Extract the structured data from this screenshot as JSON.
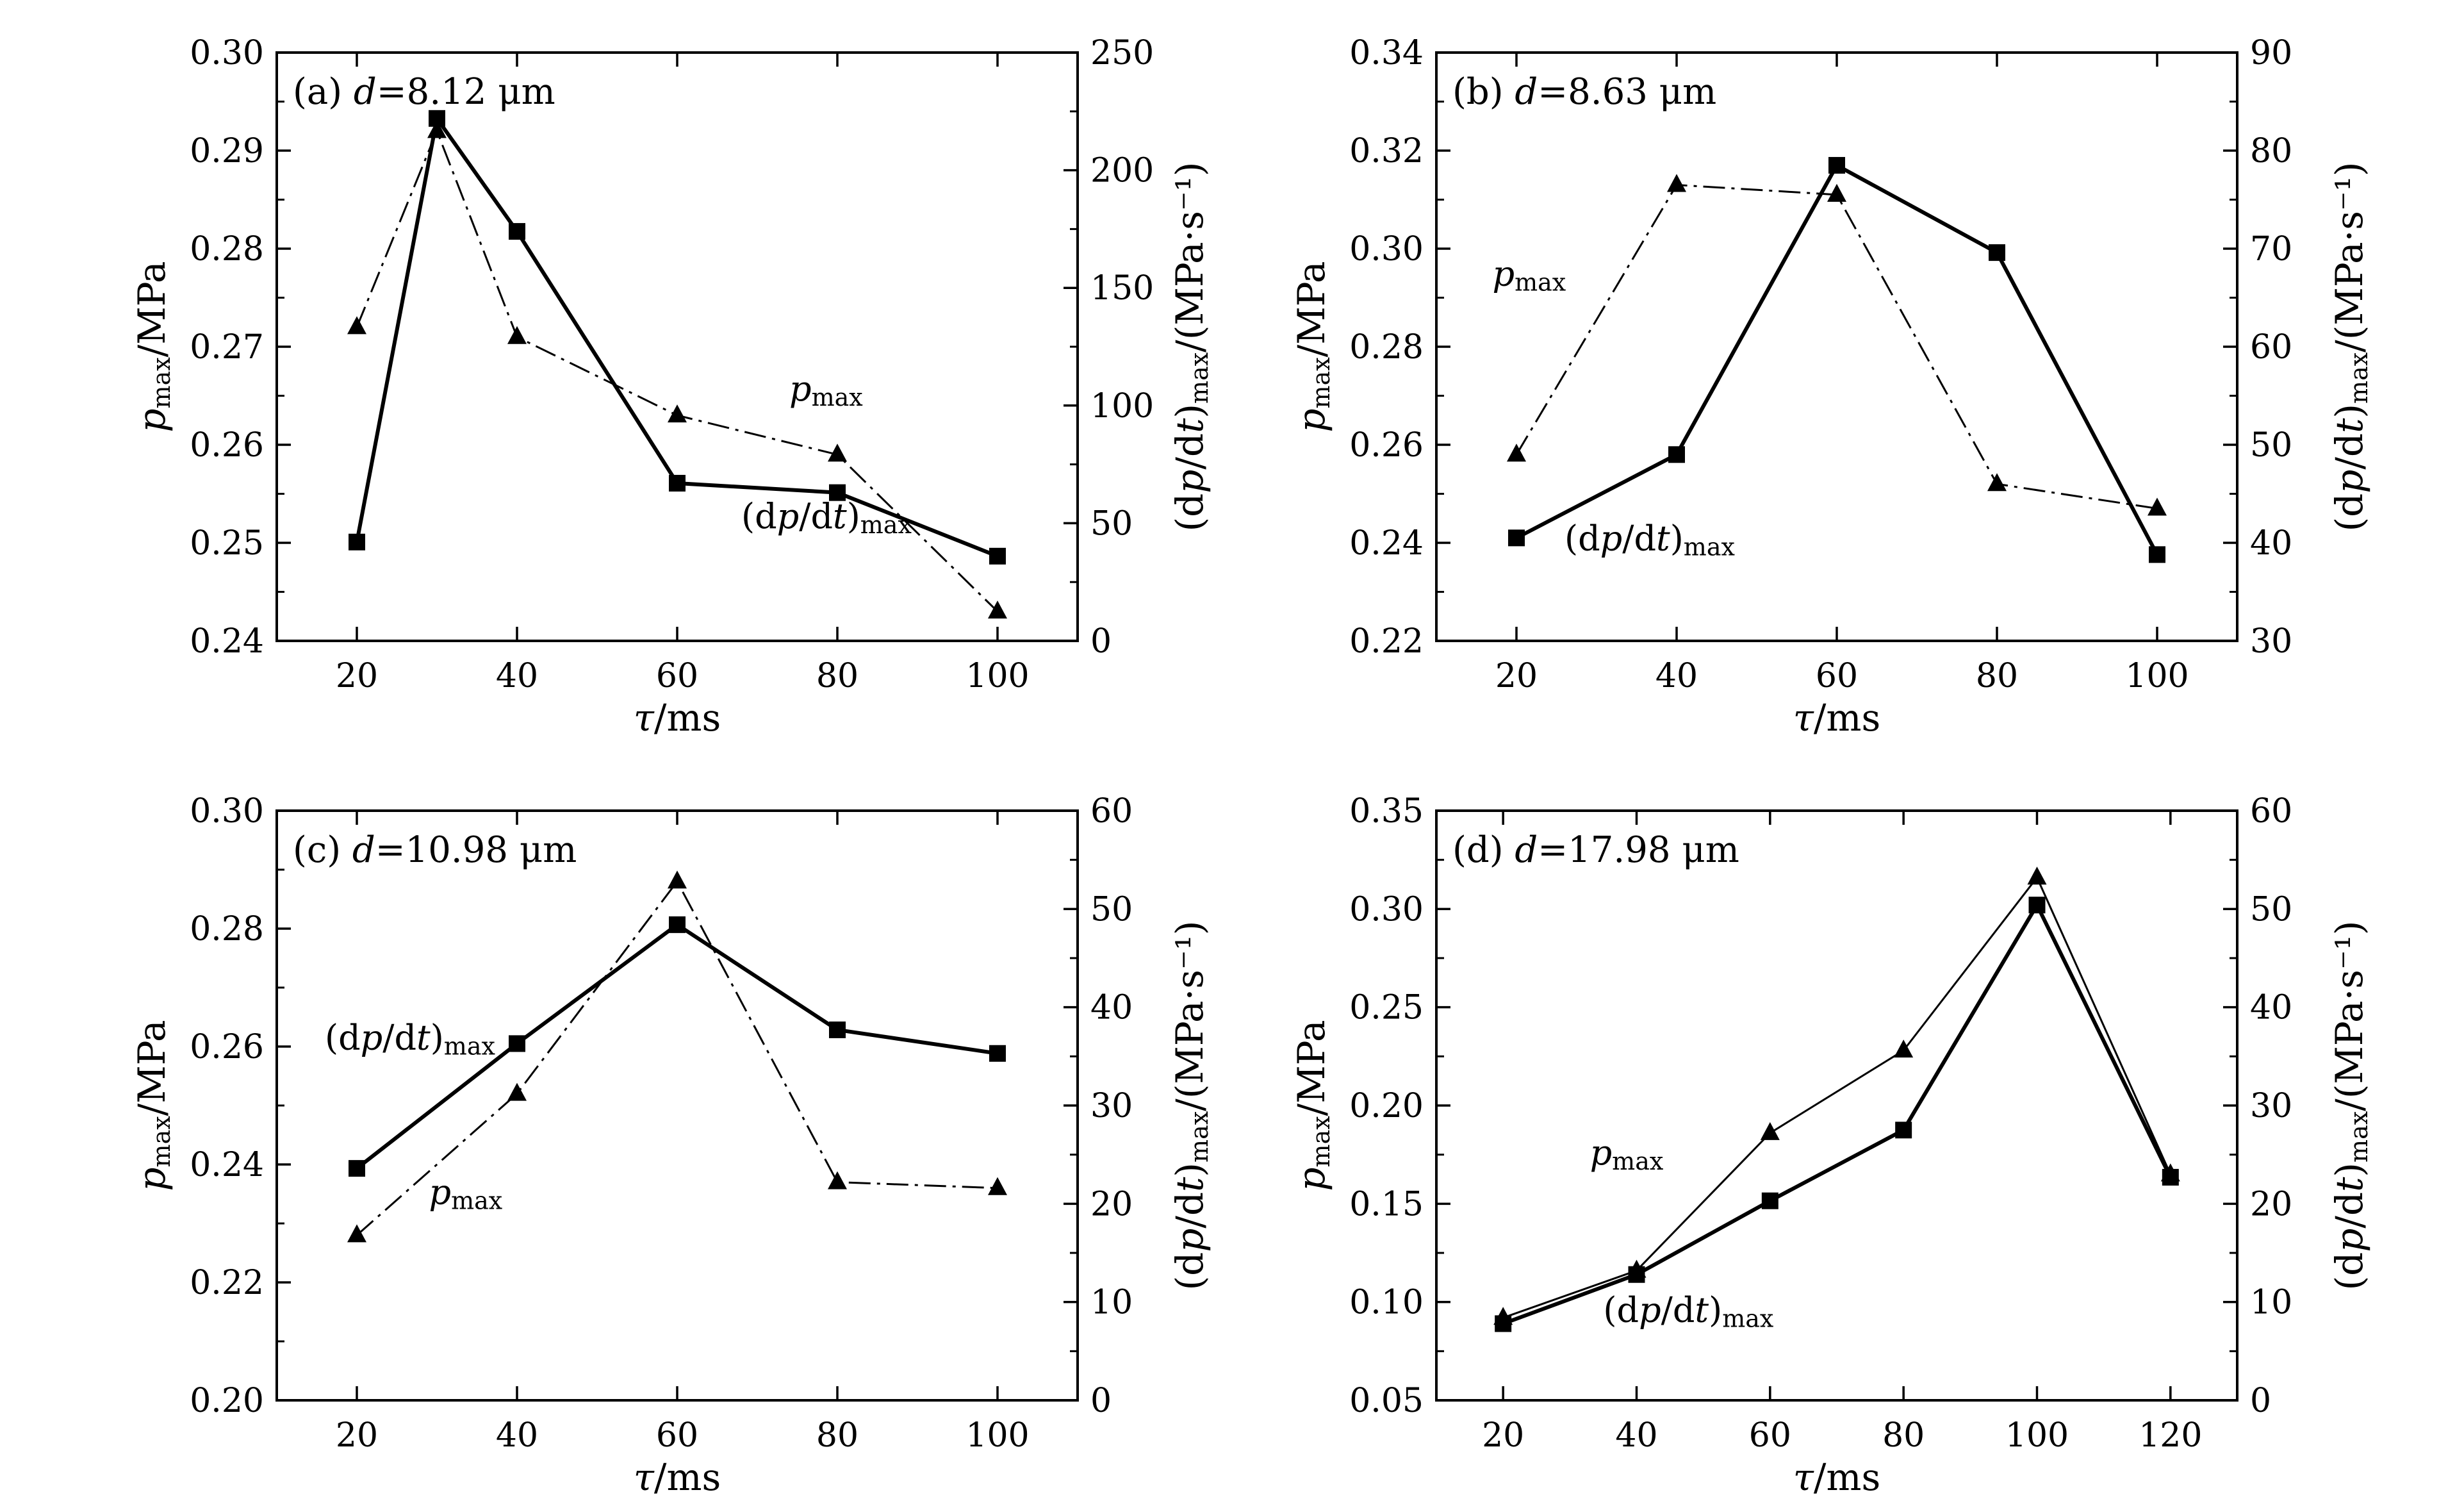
{
  "figure": {
    "background": "#ffffff",
    "ink": "#000000"
  },
  "chart_data": [
    {
      "type": "line",
      "panel": "(a)",
      "annotation": "d=8.12 μm",
      "xlabel": "τ/ms",
      "ylabel": "p_max/MPa",
      "y2label": "(dp/dt)_max/(MPa·s⁻¹)",
      "xlim": [
        10,
        110
      ],
      "xticks": [
        20,
        40,
        60,
        80,
        100
      ],
      "ylim": [
        0.24,
        0.3
      ],
      "yticks": [
        "0.24",
        "0.25",
        "0.26",
        "0.27",
        "0.28",
        "0.29",
        "0.30"
      ],
      "y2lim": [
        0,
        250
      ],
      "y2ticks": [
        "0",
        "50",
        "100",
        "150",
        "200",
        "250"
      ],
      "series": [
        {
          "name": "p_max",
          "axis": "left",
          "marker": "triangle",
          "line": "dash-dot",
          "x": [
            20,
            30,
            40,
            60,
            80,
            100
          ],
          "y": [
            0.272,
            0.292,
            0.271,
            0.263,
            0.259,
            0.243
          ]
        },
        {
          "name": "(dp/dt)_max",
          "axis": "right",
          "marker": "square",
          "line": "solid",
          "x": [
            20,
            30,
            40,
            60,
            80,
            100
          ],
          "y": [
            42,
            222,
            174,
            67,
            63,
            36
          ]
        }
      ],
      "series_labels": [
        {
          "name": "p_max",
          "x": 74,
          "y": 0.2645
        },
        {
          "name": "(dp/dt)_max",
          "x": 68,
          "y": 0.2515
        }
      ]
    },
    {
      "type": "line",
      "panel": "(b)",
      "annotation": "d=8.63 μm",
      "xlabel": "τ/ms",
      "ylabel": "p_max/MPa",
      "y2label": "(dp/dt)_max/(MPa·s⁻¹)",
      "xlim": [
        10,
        110
      ],
      "xticks": [
        20,
        40,
        60,
        80,
        100
      ],
      "ylim": [
        0.22,
        0.34
      ],
      "yticks": [
        "0.22",
        "0.24",
        "0.26",
        "0.28",
        "0.30",
        "0.32",
        "0.34"
      ],
      "y2lim": [
        30,
        90
      ],
      "y2ticks": [
        "30",
        "40",
        "50",
        "60",
        "70",
        "80",
        "90"
      ],
      "series": [
        {
          "name": "p_max",
          "axis": "left",
          "marker": "triangle",
          "line": "dash-dot",
          "x": [
            20,
            40,
            60,
            80,
            100
          ],
          "y": [
            0.258,
            0.313,
            0.311,
            0.252,
            0.247
          ]
        },
        {
          "name": "(dp/dt)_max",
          "axis": "right",
          "marker": "square",
          "line": "solid",
          "x": [
            20,
            40,
            60,
            80,
            100
          ],
          "y": [
            40.5,
            49.0,
            78.5,
            69.6,
            38.8
          ]
        }
      ],
      "series_labels": [
        {
          "name": "p_max",
          "x": 17,
          "y": 0.2925
        },
        {
          "name": "(dp/dt)_max",
          "x": 26,
          "y": 0.2385
        }
      ]
    },
    {
      "type": "line",
      "panel": "(c)",
      "annotation": "d=10.98 μm",
      "xlabel": "τ/ms",
      "ylabel": "p_max/MPa",
      "y2label": "(dp/dt)_max/(MPa·s⁻¹)",
      "xlim": [
        10,
        110
      ],
      "xticks": [
        20,
        40,
        60,
        80,
        100
      ],
      "ylim": [
        0.2,
        0.3
      ],
      "yticks": [
        "0.20",
        "0.22",
        "0.24",
        "0.26",
        "0.28",
        "0.30"
      ],
      "y2lim": [
        0,
        60
      ],
      "y2ticks": [
        "0",
        "10",
        "20",
        "30",
        "40",
        "50",
        "60"
      ],
      "series": [
        {
          "name": "p_max",
          "axis": "left",
          "marker": "triangle",
          "line": "dash-dot",
          "x": [
            20,
            40,
            60,
            80,
            100
          ],
          "y": [
            0.228,
            0.252,
            0.288,
            0.237,
            0.236
          ]
        },
        {
          "name": "(dp/dt)_max",
          "axis": "right",
          "marker": "square",
          "line": "solid",
          "x": [
            20,
            40,
            60,
            80,
            100
          ],
          "y": [
            23.6,
            36.3,
            48.4,
            37.7,
            35.3
          ]
        }
      ],
      "series_labels": [
        {
          "name": "p_max",
          "x": 29,
          "y": 0.2333
        },
        {
          "name": "(dp/dt)_max",
          "x": 16,
          "y": 0.2595
        }
      ]
    },
    {
      "type": "line",
      "panel": "(d)",
      "annotation": "d=17.98 μm",
      "xlabel": "τ/ms",
      "ylabel": "p_max/MPa",
      "y2label": "(dp/dt)_max/(MPa·s⁻¹)",
      "xlim": [
        10,
        130
      ],
      "xticks": [
        20,
        40,
        60,
        80,
        100,
        120
      ],
      "ylim": [
        0.05,
        0.35
      ],
      "yticks": [
        "0.05",
        "0.10",
        "0.15",
        "0.20",
        "0.25",
        "0.30",
        "0.35"
      ],
      "y2lim": [
        0,
        60
      ],
      "y2ticks": [
        "0",
        "10",
        "20",
        "30",
        "40",
        "50",
        "60"
      ],
      "series": [
        {
          "name": "p_max",
          "axis": "left",
          "marker": "triangle",
          "line": "thin",
          "x": [
            20,
            40,
            60,
            80,
            100,
            120
          ],
          "y": [
            0.092,
            0.116,
            0.186,
            0.228,
            0.316,
            0.165
          ]
        },
        {
          "name": "(dp/dt)_max",
          "axis": "right",
          "marker": "square",
          "line": "solid",
          "x": [
            20,
            40,
            60,
            80,
            100,
            120
          ],
          "y": [
            7.8,
            12.8,
            20.3,
            27.5,
            50.4,
            22.7
          ]
        }
      ],
      "series_labels": [
        {
          "name": "p_max",
          "x": 33,
          "y": 0.17
        },
        {
          "name": "(dp/dt)_max",
          "x": 35,
          "y": 0.09
        }
      ]
    }
  ]
}
